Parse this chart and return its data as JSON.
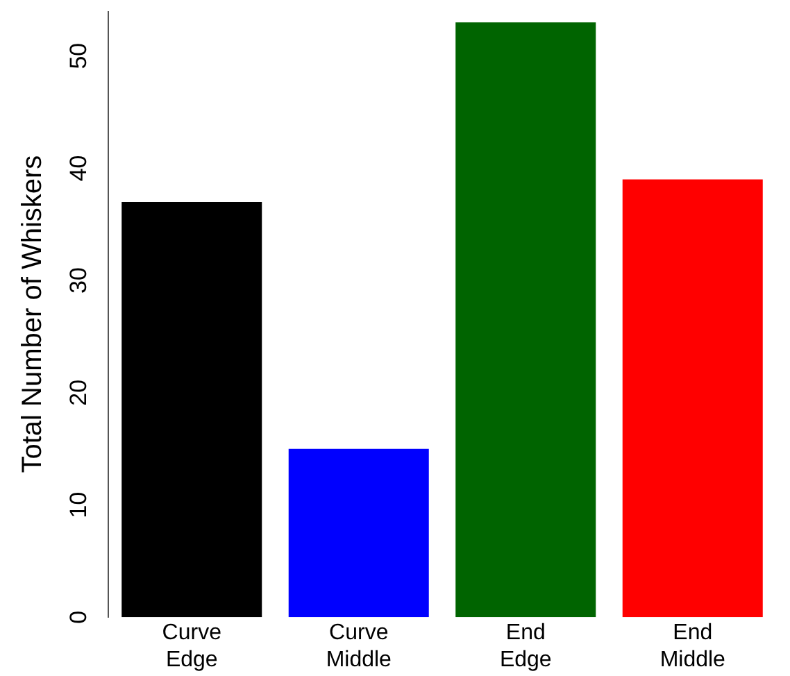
{
  "chart_data": {
    "type": "bar",
    "ylabel": "Total Number of Whiskers",
    "categories": [
      "Curve Edge",
      "Curve Middle",
      "End Edge",
      "End Middle"
    ],
    "values": [
      37,
      15,
      53,
      39
    ],
    "colors": [
      "#000000",
      "#0000ff",
      "#006400",
      "#ff0000"
    ],
    "ylim": [
      0,
      54
    ],
    "yticks": [
      0,
      10,
      20,
      30,
      40,
      50
    ],
    "grid": false,
    "legend": false
  }
}
